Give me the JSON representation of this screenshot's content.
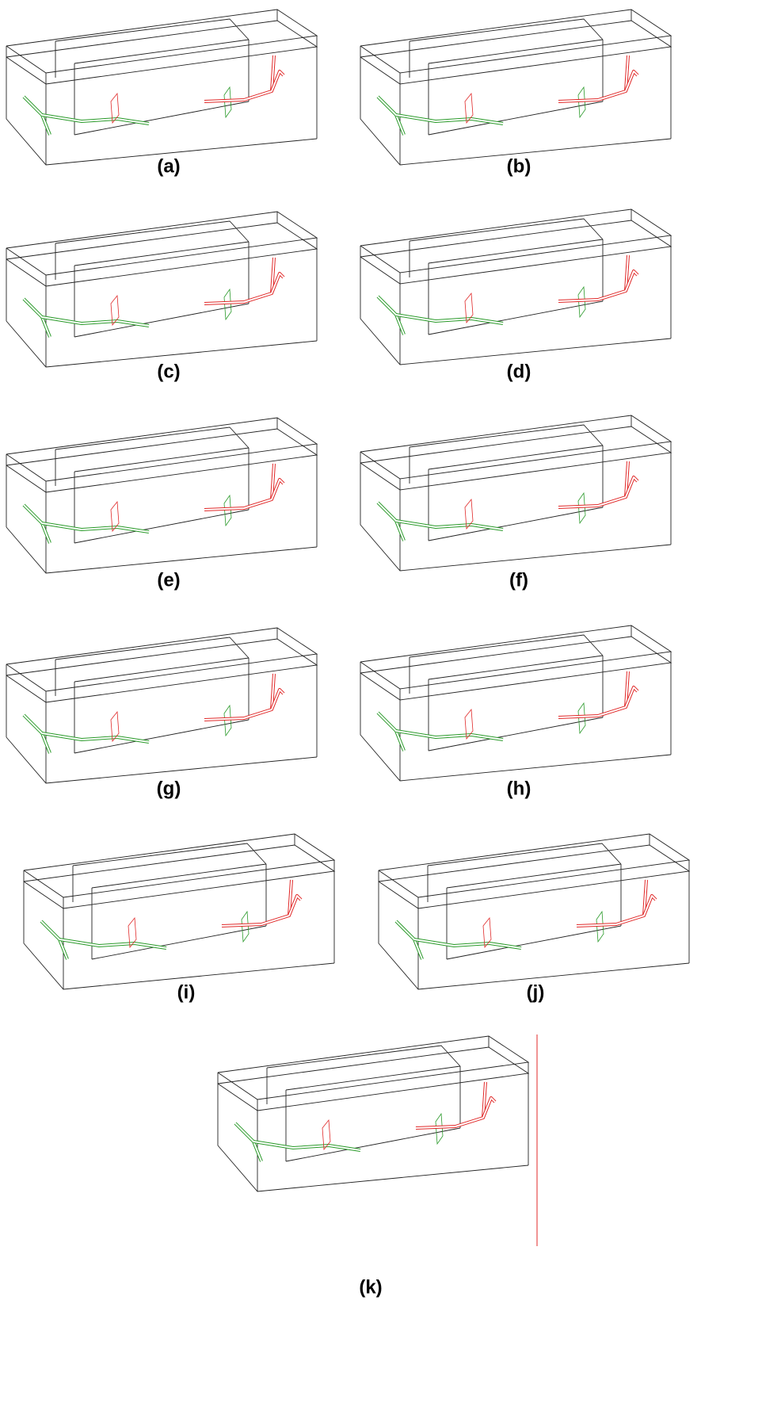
{
  "panels": [
    {
      "label": "(a)"
    },
    {
      "label": "(b)"
    },
    {
      "label": "(c)"
    },
    {
      "label": "(d)"
    },
    {
      "label": "(e)"
    },
    {
      "label": "(f)"
    },
    {
      "label": "(g)"
    },
    {
      "label": "(h)"
    },
    {
      "label": "(i)"
    },
    {
      "label": "(j)"
    },
    {
      "label": "(k)"
    }
  ]
}
